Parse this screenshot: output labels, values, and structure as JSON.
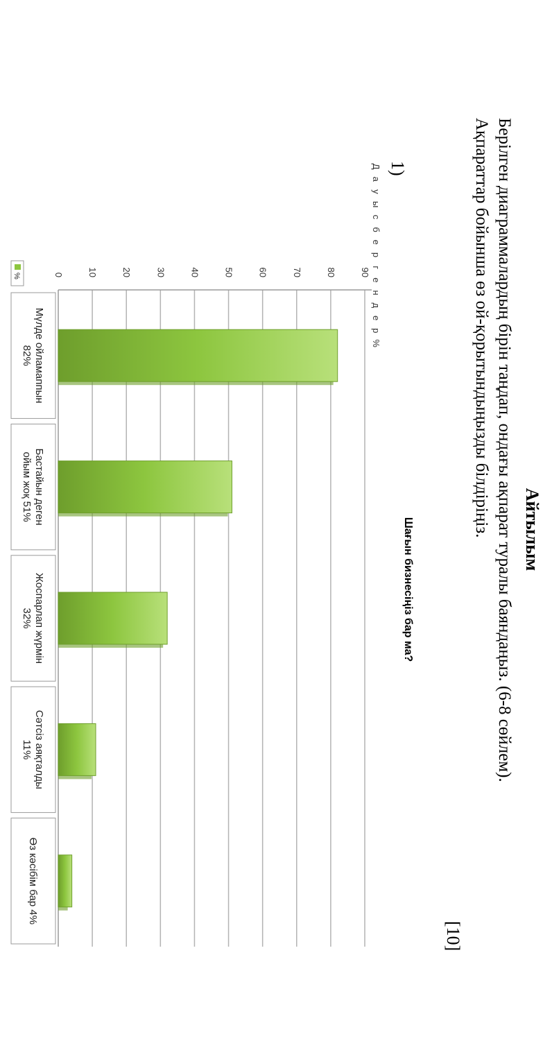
{
  "task": {
    "title": "Айтылым",
    "line1": "Берілген диаграммалардың бірін таңдап, ондағы ақпарат туралы баяндаңыз. (6-8 сөйлем).",
    "line2": "Ақпараттар бойынша өз ой-қорытындыңызды білдіріңіз.",
    "points": "[10]",
    "number": "1)"
  },
  "colors": {
    "bar": "#8dc63f",
    "bar_light": "#b8e07a",
    "bar_dark": "#6e9e2c",
    "grid": "#b3b3b3"
  },
  "chart_data": {
    "type": "bar",
    "title": "Шағын бизнесіңіз бар ма?",
    "ylabel_letters": [
      "Д",
      "а",
      "у",
      "ы",
      "с",
      "б",
      "е",
      "р",
      "г",
      "е",
      "н",
      "д",
      "е",
      "р",
      "%"
    ],
    "ylim": [
      0,
      90
    ],
    "yticks": [
      0,
      10,
      20,
      30,
      40,
      50,
      60,
      70,
      80,
      90
    ],
    "grid": true,
    "legend": "bottom-left",
    "series": [
      {
        "name": "%",
        "values": [
          82,
          51,
          32,
          11,
          4
        ]
      }
    ],
    "categories": [
      [
        "Мүлде ойламаппын",
        "82%"
      ],
      [
        "Бастайын деген",
        "ойым жоқ 51%"
      ],
      [
        "Жоспарлап жүрмін",
        "32%"
      ],
      [
        "Сәтсіз аяқталды",
        "11%"
      ],
      [
        "Өз кәсібім бар 4%"
      ]
    ]
  }
}
